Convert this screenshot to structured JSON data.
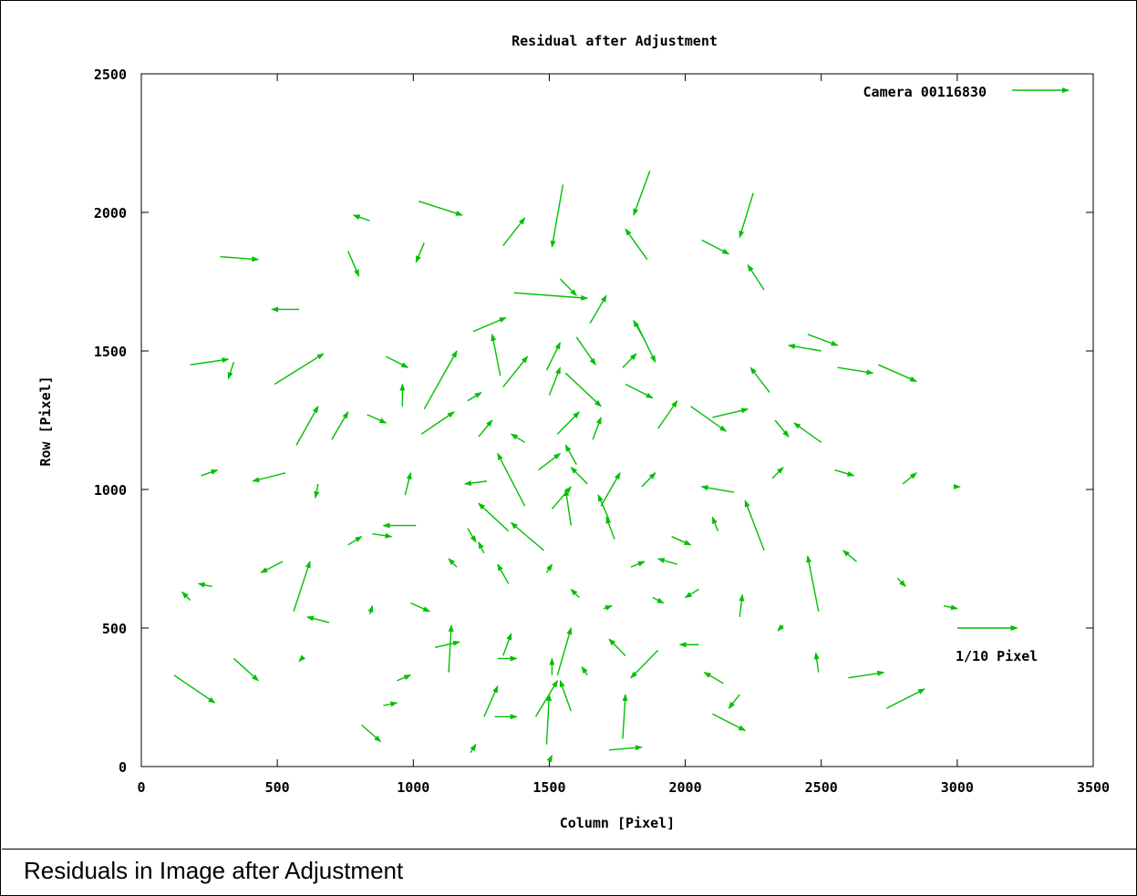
{
  "chart_data": {
    "type": "vector-field",
    "title": "Residual after Adjustment",
    "xlabel": "Column [Pixel]",
    "ylabel": "Row [Pixel]",
    "xlim": [
      0,
      3500
    ],
    "ylim": [
      0,
      2500
    ],
    "xticks": [
      0,
      500,
      1000,
      1500,
      2000,
      2500,
      3000,
      3500
    ],
    "yticks": [
      0,
      500,
      1000,
      1500,
      2000,
      2500
    ],
    "legend": {
      "label": "Camera 00116830",
      "position": "top-right"
    },
    "scale_annotation": "1/10 Pixel",
    "color": "#00c000",
    "vectors": [
      [
        1550,
        2100,
        1510,
        1875
      ],
      [
        1870,
        2150,
        1810,
        1990
      ],
      [
        2250,
        2070,
        2200,
        1910
      ],
      [
        1020,
        2040,
        1180,
        1990
      ],
      [
        840,
        1970,
        780,
        1990
      ],
      [
        1040,
        1890,
        1010,
        1820
      ],
      [
        1330,
        1880,
        1410,
        1980
      ],
      [
        1860,
        1830,
        1780,
        1940
      ],
      [
        2060,
        1900,
        2160,
        1850
      ],
      [
        290,
        1840,
        430,
        1830
      ],
      [
        760,
        1860,
        800,
        1770
      ],
      [
        1370,
        1710,
        1640,
        1690
      ],
      [
        1540,
        1760,
        1600,
        1700
      ],
      [
        580,
        1650,
        480,
        1650
      ],
      [
        1220,
        1570,
        1340,
        1620
      ],
      [
        1650,
        1600,
        1710,
        1700
      ],
      [
        1820,
        1600,
        1890,
        1460
      ],
      [
        2290,
        1720,
        2230,
        1810
      ],
      [
        1320,
        1410,
        1290,
        1560
      ],
      [
        1490,
        1430,
        1540,
        1530
      ],
      [
        1600,
        1550,
        1670,
        1450
      ],
      [
        1770,
        1440,
        1820,
        1490
      ],
      [
        2500,
        1500,
        2380,
        1520
      ],
      [
        180,
        1450,
        320,
        1470
      ],
      [
        1850,
        1540,
        1810,
        1610
      ],
      [
        900,
        1480,
        980,
        1440
      ],
      [
        340,
        1460,
        320,
        1400
      ],
      [
        2450,
        1560,
        2560,
        1520
      ],
      [
        490,
        1380,
        670,
        1490
      ],
      [
        960,
        1300,
        960,
        1380
      ],
      [
        1040,
        1290,
        1160,
        1500
      ],
      [
        1330,
        1370,
        1420,
        1480
      ],
      [
        1500,
        1340,
        1540,
        1440
      ],
      [
        1560,
        1420,
        1690,
        1300
      ],
      [
        1780,
        1380,
        1880,
        1330
      ],
      [
        2020,
        1300,
        2150,
        1210
      ],
      [
        2310,
        1350,
        2240,
        1440
      ],
      [
        2560,
        1440,
        2690,
        1420
      ],
      [
        2710,
        1450,
        2850,
        1390
      ],
      [
        570,
        1160,
        650,
        1300
      ],
      [
        1030,
        1200,
        1150,
        1280
      ],
      [
        1200,
        1320,
        1250,
        1350
      ],
      [
        1410,
        1170,
        1360,
        1200
      ],
      [
        1530,
        1200,
        1610,
        1280
      ],
      [
        1660,
        1180,
        1690,
        1260
      ],
      [
        1900,
        1220,
        1970,
        1320
      ],
      [
        2100,
        1260,
        2230,
        1290
      ],
      [
        2330,
        1250,
        2380,
        1190
      ],
      [
        2500,
        1170,
        2400,
        1240
      ],
      [
        830,
        1270,
        900,
        1240
      ],
      [
        700,
        1180,
        760,
        1280
      ],
      [
        1240,
        1190,
        1290,
        1250
      ],
      [
        530,
        1060,
        410,
        1030
      ],
      [
        220,
        1050,
        280,
        1070
      ],
      [
        650,
        1020,
        640,
        970
      ],
      [
        970,
        980,
        990,
        1060
      ],
      [
        1270,
        1030,
        1190,
        1020
      ],
      [
        1460,
        1070,
        1540,
        1130
      ],
      [
        1600,
        1090,
        1560,
        1160
      ],
      [
        1640,
        1020,
        1580,
        1080
      ],
      [
        1690,
        940,
        1760,
        1060
      ],
      [
        1840,
        1010,
        1890,
        1060
      ],
      [
        2180,
        990,
        2060,
        1010
      ],
      [
        2320,
        1040,
        2360,
        1080
      ],
      [
        2550,
        1070,
        2620,
        1050
      ],
      [
        2800,
        1020,
        2850,
        1060
      ],
      [
        3000,
        1010,
        3010,
        1010
      ],
      [
        1410,
        940,
        1310,
        1130
      ],
      [
        1510,
        930,
        1580,
        1010
      ],
      [
        1580,
        870,
        1560,
        1000
      ],
      [
        1720,
        890,
        1680,
        980
      ],
      [
        1010,
        870,
        890,
        870
      ],
      [
        760,
        800,
        810,
        830
      ],
      [
        850,
        840,
        920,
        830
      ],
      [
        1200,
        860,
        1230,
        810
      ],
      [
        1350,
        850,
        1240,
        950
      ],
      [
        1480,
        780,
        1360,
        880
      ],
      [
        1740,
        820,
        1710,
        900
      ],
      [
        1950,
        830,
        2020,
        800
      ],
      [
        2120,
        850,
        2100,
        900
      ],
      [
        2290,
        780,
        2220,
        960
      ],
      [
        2490,
        560,
        2450,
        760
      ],
      [
        2630,
        740,
        2580,
        780
      ],
      [
        2780,
        680,
        2810,
        650
      ],
      [
        2950,
        580,
        3000,
        570
      ],
      [
        3000,
        500,
        3220,
        500
      ],
      [
        520,
        740,
        440,
        700
      ],
      [
        560,
        560,
        620,
        740
      ],
      [
        260,
        650,
        210,
        660
      ],
      [
        180,
        600,
        150,
        630
      ],
      [
        690,
        520,
        610,
        540
      ],
      [
        990,
        590,
        1060,
        560
      ],
      [
        1160,
        720,
        1130,
        750
      ],
      [
        1260,
        770,
        1240,
        810
      ],
      [
        1350,
        660,
        1310,
        730
      ],
      [
        1490,
        700,
        1510,
        730
      ],
      [
        1610,
        610,
        1580,
        640
      ],
      [
        1800,
        720,
        1850,
        740
      ],
      [
        1970,
        730,
        1900,
        750
      ],
      [
        2050,
        640,
        2000,
        610
      ],
      [
        2200,
        540,
        2210,
        620
      ],
      [
        1700,
        570,
        1730,
        580
      ],
      [
        1880,
        610,
        1920,
        590
      ],
      [
        2360,
        510,
        2340,
        490
      ],
      [
        120,
        330,
        270,
        230
      ],
      [
        340,
        390,
        430,
        310
      ],
      [
        590,
        390,
        580,
        380
      ],
      [
        840,
        550,
        850,
        580
      ],
      [
        890,
        220,
        940,
        230
      ],
      [
        940,
        310,
        990,
        330
      ],
      [
        1080,
        430,
        1170,
        450
      ],
      [
        1130,
        340,
        1140,
        510
      ],
      [
        1310,
        390,
        1380,
        390
      ],
      [
        1330,
        400,
        1360,
        480
      ],
      [
        1510,
        330,
        1510,
        390
      ],
      [
        1530,
        330,
        1580,
        500
      ],
      [
        1450,
        180,
        1530,
        310
      ],
      [
        1580,
        200,
        1540,
        310
      ],
      [
        1490,
        80,
        1500,
        260
      ],
      [
        1500,
        20,
        1510,
        40
      ],
      [
        1770,
        100,
        1780,
        260
      ],
      [
        1720,
        60,
        1840,
        70
      ],
      [
        1900,
        420,
        1800,
        320
      ],
      [
        1780,
        400,
        1720,
        460
      ],
      [
        2050,
        440,
        1980,
        440
      ],
      [
        2140,
        300,
        2070,
        340
      ],
      [
        2200,
        260,
        2160,
        210
      ],
      [
        2100,
        190,
        2220,
        130
      ],
      [
        2490,
        340,
        2480,
        410
      ],
      [
        2600,
        320,
        2730,
        340
      ],
      [
        2740,
        210,
        2880,
        280
      ],
      [
        1210,
        50,
        1230,
        80
      ],
      [
        1300,
        180,
        1380,
        180
      ],
      [
        1260,
        180,
        1310,
        290
      ],
      [
        810,
        150,
        880,
        90
      ],
      [
        1640,
        330,
        1620,
        360
      ]
    ]
  }
}
